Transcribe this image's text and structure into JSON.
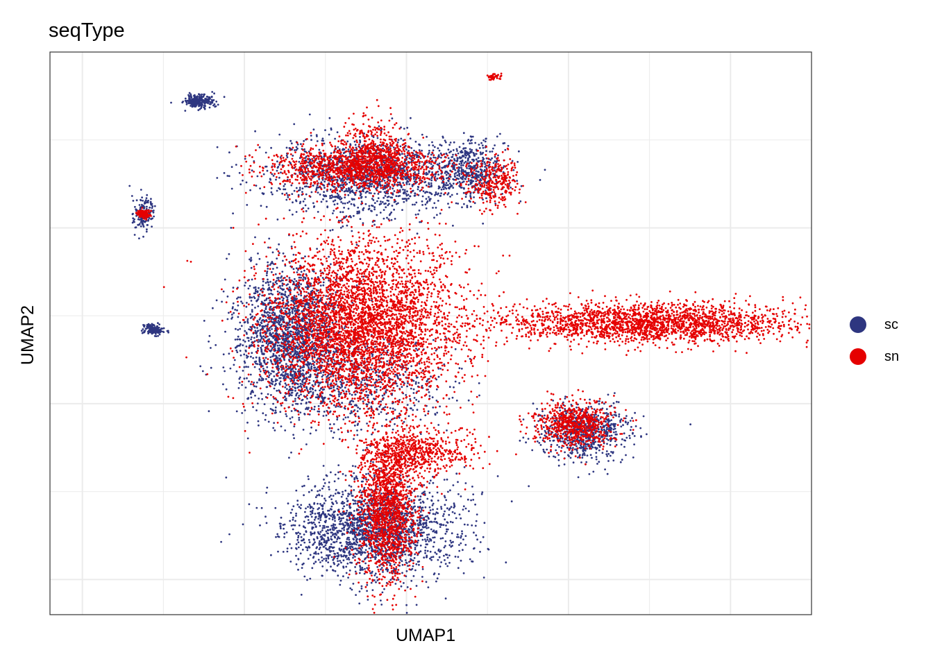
{
  "chart_data": {
    "type": "scatter",
    "title": "seqType",
    "xlabel": "UMAP1",
    "ylabel": "UMAP2",
    "grid": true,
    "axis_ticks_labeled": false,
    "legend_position": "right",
    "series": [
      {
        "name": "sc",
        "color": "#2E3680"
      },
      {
        "name": "sn",
        "color": "#E50000"
      }
    ],
    "clusters": [
      {
        "series": "sc",
        "x": -6.4,
        "y": 8.6,
        "sx": 0.22,
        "sy": 0.1,
        "n": 250
      },
      {
        "series": "sc",
        "x": -7.8,
        "y": 2.1,
        "sx": 0.15,
        "sy": 0.08,
        "n": 140
      },
      {
        "series": "sc",
        "x": -8.1,
        "y": 5.4,
        "sx": 0.15,
        "sy": 0.25,
        "n": 160
      },
      {
        "series": "sn",
        "x": -8.1,
        "y": 5.4,
        "sx": 0.1,
        "sy": 0.06,
        "n": 120
      },
      {
        "series": "sc",
        "x": -1.1,
        "y": 6.5,
        "sx": 1.6,
        "sy": 0.55,
        "n": 1500
      },
      {
        "series": "sn",
        "x": -1.5,
        "y": 6.7,
        "sx": 1.4,
        "sy": 0.3,
        "n": 1200
      },
      {
        "series": "sn",
        "x": -1.0,
        "y": 7.2,
        "sx": 0.5,
        "sy": 0.5,
        "n": 400
      },
      {
        "series": "sc",
        "x": 2.0,
        "y": 6.7,
        "sx": 0.5,
        "sy": 0.4,
        "n": 400
      },
      {
        "series": "sn",
        "x": 2.7,
        "y": 6.3,
        "sx": 0.4,
        "sy": 0.35,
        "n": 300
      },
      {
        "series": "sn",
        "x": 2.7,
        "y": 9.3,
        "sx": 0.1,
        "sy": 0.05,
        "n": 40
      },
      {
        "series": "sc",
        "x": -3.6,
        "y": 2.0,
        "sx": 0.8,
        "sy": 1.0,
        "n": 1800
      },
      {
        "series": "sn",
        "x": -1.4,
        "y": 2.2,
        "sx": 1.5,
        "sy": 1.2,
        "n": 4200
      },
      {
        "series": "sc",
        "x": -1.6,
        "y": 0.6,
        "sx": 1.4,
        "sy": 0.7,
        "n": 700
      },
      {
        "series": "sc",
        "x": -1.0,
        "y": -3.6,
        "sx": 1.3,
        "sy": 0.7,
        "n": 2000
      },
      {
        "series": "sn",
        "x": -0.6,
        "y": -3.0,
        "sx": 0.45,
        "sy": 1.0,
        "n": 1500
      },
      {
        "series": "sn",
        "x": 0.4,
        "y": -1.4,
        "sx": 0.9,
        "sy": 0.3,
        "n": 600
      },
      {
        "series": "sn",
        "x": 7.5,
        "y": 2.3,
        "sx": 2.2,
        "sy": 0.28,
        "n": 2200
      },
      {
        "series": "sc",
        "x": 5.5,
        "y": -0.8,
        "sx": 0.7,
        "sy": 0.4,
        "n": 700
      },
      {
        "series": "sn",
        "x": 5.2,
        "y": -0.6,
        "sx": 0.6,
        "sy": 0.32,
        "n": 700
      }
    ]
  },
  "legend": {
    "items": [
      {
        "label": "sc",
        "color": "#2E3680"
      },
      {
        "label": "sn",
        "color": "#E50000"
      }
    ]
  }
}
